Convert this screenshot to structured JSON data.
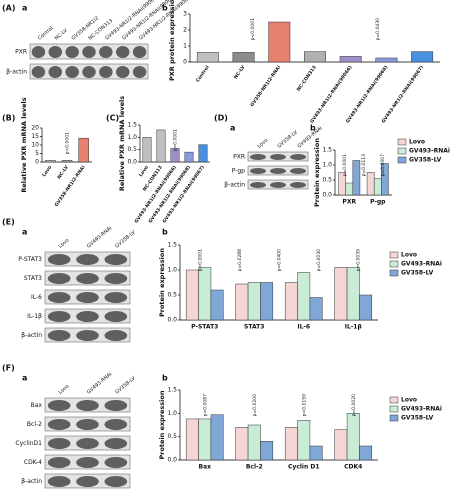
{
  "panels": [
    "(A)",
    "a",
    "b",
    "(B)",
    "(C)",
    "(D)",
    "a",
    "b",
    "(E)",
    "a",
    "b",
    "(F)",
    "a",
    "b"
  ],
  "blots": [
    {
      "lanes": [
        "Control",
        "NC-LV",
        "GV358-NR1I2",
        "NC-CON313",
        "GV493-NR1I2-RNAi(99066)",
        "GV493-NR1I2-RNAi(99068)",
        "GV493-NR1I2-RNAi(99067)"
      ],
      "rows": [
        "PXR",
        "β-actin"
      ]
    },
    {
      "lanes": [
        "Lovo",
        "GV358-LV",
        "GV493-RNAi"
      ],
      "rows": [
        "PXR",
        "P-gp",
        "β-actin"
      ]
    },
    {
      "lanes": [
        "Lovo",
        "GV493-RNAi",
        "GV358-LV"
      ],
      "rows": [
        "P-STAT3",
        "STAT3",
        "IL-6",
        "IL-1β",
        "β-actin"
      ]
    },
    {
      "lanes": [
        "Lovo",
        "GV493-RNAi",
        "GV358-LV"
      ],
      "rows": [
        "Bax",
        "Bcl-2",
        "CyclinD1",
        "CDK-4",
        "β-actin"
      ]
    }
  ],
  "chart_data": [
    {
      "type": "bar",
      "y_label": "PXR protein expression",
      "categories": [
        "Control",
        "NC-LV",
        "GV358-NR1I2-RNAi",
        "NC-CON313",
        "GV493-NR1I2-RNAi(99066)",
        "GV493-NR1I2-RNAi(99068)",
        "GV493-NR1I2-RNAi(99067)"
      ],
      "values": [
        0.6,
        0.6,
        2.5,
        0.65,
        0.35,
        0.25,
        0.65
      ],
      "colors": [
        "#c0c0c0",
        "#8c8c8c",
        "#e8806e",
        "#b0b0b0",
        "#9f8fc8",
        "#8a9ae0",
        "#4a90e0"
      ],
      "ylim": [
        0,
        3
      ],
      "yticks": [
        0,
        1,
        2,
        3
      ],
      "annotations": [
        "p<0.0001",
        "p=0.0430"
      ]
    },
    {
      "type": "bar",
      "y_label": "Relative PXR mRNA levels",
      "categories": [
        "Lovo",
        "NC-LV",
        "GV358-NR1I2-RNAi"
      ],
      "values": [
        1,
        1,
        14
      ],
      "colors": [
        "#c0c0c0",
        "#b0b0b0",
        "#e8806e"
      ],
      "ylim": [
        0,
        20
      ],
      "yticks": [
        0,
        5,
        10,
        15,
        20
      ],
      "annotations": [
        "p<0.0001"
      ]
    },
    {
      "type": "bar",
      "y_label": "Relative PXR mRNA levels",
      "categories": [
        "Lovo",
        "NC-CON313",
        "GV493-NR1I2-RNAi(99066)",
        "GV493-NR1I2-RNAi(99068)",
        "GV493-NR1I2-RNAi(99067)"
      ],
      "values": [
        1.0,
        1.3,
        0.55,
        0.4,
        0.7
      ],
      "colors": [
        "#c0c0c0",
        "#c0c0c0",
        "#9f8fc8",
        "#8a9ae0",
        "#4a90e0"
      ],
      "ylim": [
        0,
        1.5
      ],
      "yticks": [
        {
          "value": 0,
          "label": "0.0"
        },
        {
          "value": 0.5,
          "label": "0.5"
        },
        {
          "value": 1,
          "label": "1.0"
        },
        {
          "value": 1.5,
          "label": "1.5"
        }
      ],
      "annotations": [
        "p=0.0001"
      ]
    },
    {
      "type": "bar",
      "y_label": "Protein expression",
      "categories": [
        "PXR",
        "P-gp"
      ],
      "series": [
        {
          "name": "Lovo",
          "color": "#f6d5d5",
          "values": [
            0.75,
            0.75
          ]
        },
        {
          "name": "GV493-RNAi",
          "color": "#c9ecd6",
          "values": [
            0.4,
            0.55
          ]
        },
        {
          "name": "GV358-LV",
          "color": "#7fa7d8",
          "values": [
            1.15,
            1.05
          ]
        }
      ],
      "ylim": [
        0,
        1.5
      ],
      "yticks": [
        {
          "value": 0,
          "label": "0.0"
        },
        {
          "value": 0.5,
          "label": "0.5"
        },
        {
          "value": 1,
          "label": "1.0"
        },
        {
          "value": 1.5,
          "label": "1.5"
        }
      ],
      "legend": "right",
      "annotations": [
        "p=0.0001",
        "p=0.0113",
        "p=0.0007"
      ]
    },
    {
      "type": "bar",
      "y_label": "Protein expression",
      "categories": [
        "P-STAT3",
        "STAT3",
        "IL-6",
        "IL-1β"
      ],
      "series": [
        {
          "name": "Lovo",
          "color": "#f6d5d5",
          "values": [
            1.0,
            0.72,
            0.75,
            1.05
          ]
        },
        {
          "name": "GV493-RNAi",
          "color": "#c9ecd6",
          "values": [
            1.05,
            0.75,
            0.95,
            1.05
          ]
        },
        {
          "name": "GV358-LV",
          "color": "#7fa7d8",
          "values": [
            0.6,
            0.75,
            0.45,
            0.5
          ]
        }
      ],
      "ylim": [
        0,
        1.5
      ],
      "yticks": [
        {
          "value": 0,
          "label": "0.0"
        },
        {
          "value": 0.5,
          "label": "0.5"
        },
        {
          "value": 1,
          "label": "1.0"
        },
        {
          "value": 1.5,
          "label": "1.5"
        }
      ],
      "legend": "right",
      "annotations": [
        "p<0.0001",
        "p=0.0288",
        "p=0.0400",
        "p=0.0030",
        "p=0.0035"
      ]
    },
    {
      "type": "bar",
      "y_label": "Protein expression",
      "categories": [
        "Bax",
        "Bcl-2",
        "Cyclin D1",
        "CDK4"
      ],
      "series": [
        {
          "name": "Lovo",
          "color": "#f6d5d5",
          "values": [
            0.88,
            0.7,
            0.7,
            0.65
          ]
        },
        {
          "name": "GV493-RNAi",
          "color": "#c9ecd6",
          "values": [
            0.88,
            0.75,
            0.85,
            1.0
          ]
        },
        {
          "name": "GV358-LV",
          "color": "#7fa7d8",
          "values": [
            0.97,
            0.4,
            0.3,
            0.3
          ]
        }
      ],
      "ylim": [
        0,
        1.5
      ],
      "yticks": [
        {
          "value": 0,
          "label": "0.0"
        },
        {
          "value": 0.5,
          "label": "0.5"
        },
        {
          "value": 1,
          "label": "1.0"
        },
        {
          "value": 1.5,
          "label": "1.5"
        }
      ],
      "legend": "right",
      "annotations": [
        "p=0.0087",
        "p=0.0200",
        "p=0.0159",
        "p=0.0020"
      ]
    }
  ]
}
